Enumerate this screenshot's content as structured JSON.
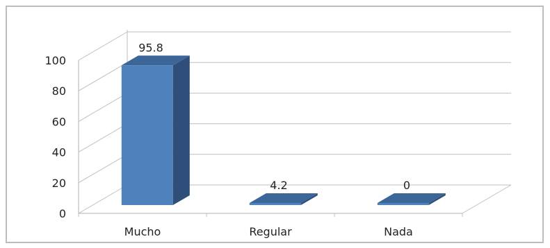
{
  "chart_data": {
    "type": "bar",
    "three_d": true,
    "categories": [
      "Mucho",
      "Regular",
      "Nada"
    ],
    "values": [
      95.8,
      4.2,
      0
    ],
    "data_labels": [
      "95.8",
      "4.2",
      "0"
    ],
    "y_ticks": [
      "0",
      "20",
      "40",
      "60",
      "80",
      "100"
    ],
    "ylim": [
      0,
      100
    ],
    "grid": true,
    "legend": "none"
  },
  "colors": {
    "bar_front": "#4f81bd",
    "bar_side": "#2f4f7a",
    "bar_top": "#3c6598",
    "grid": "#bfbfbf",
    "frame": "#bdbdbd"
  }
}
